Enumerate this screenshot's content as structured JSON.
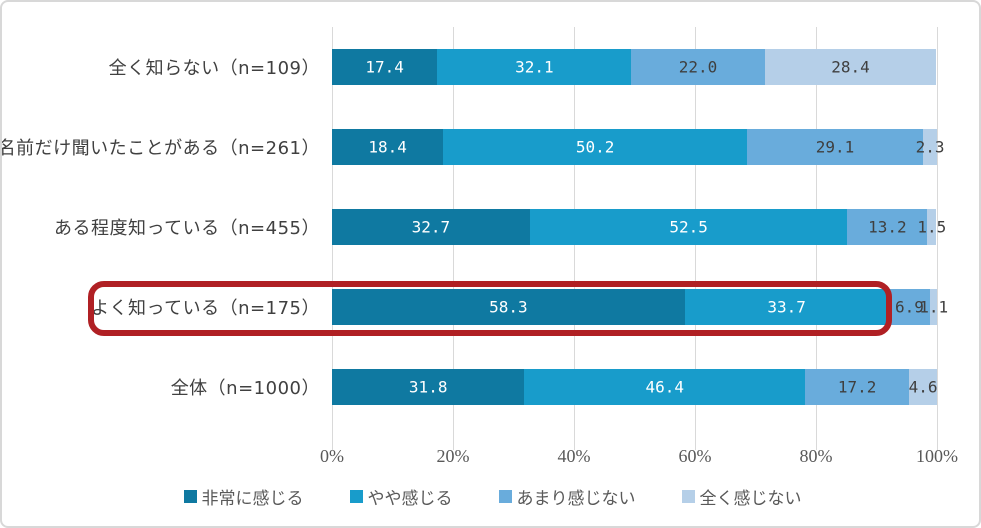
{
  "chart_data": {
    "type": "bar",
    "orientation": "horizontal-stacked",
    "title": "",
    "categories": [
      "全く知らない（n=109）",
      "名前だけ聞いたことがある（n=261）",
      "ある程度知っている（n=455）",
      "よく知っている（n=175）",
      "全体（n=1000）"
    ],
    "series": [
      {
        "name": "非常に感じる",
        "color": "#0f79a1",
        "label_color": "#ffffff",
        "values": [
          17.4,
          18.4,
          32.7,
          58.3,
          31.8
        ],
        "labels": [
          "17.4",
          "18.4",
          "32.7",
          "58.3",
          "31.8"
        ]
      },
      {
        "name": "やや感じる",
        "color": "#189ccb",
        "label_color": "#ffffff",
        "values": [
          32.1,
          50.2,
          52.5,
          33.7,
          46.4
        ],
        "labels": [
          "32.1",
          "50.2",
          "52.5",
          "33.7",
          "46.4"
        ]
      },
      {
        "name": "あまり感じない",
        "color": "#69acdc",
        "label_color": "#3f3f3f",
        "values": [
          22.0,
          29.1,
          13.2,
          6.9,
          17.2
        ],
        "labels": [
          "22.0",
          "29.1",
          "13.2",
          "6.9",
          "17.2"
        ]
      },
      {
        "name": "全く感じない",
        "color": "#b5cfe8",
        "label_color": "#3f3f3f",
        "values": [
          28.4,
          2.3,
          1.5,
          1.1,
          4.6
        ],
        "labels": [
          "28.4",
          "2.3",
          "1.5",
          "1.1",
          "4.6"
        ]
      }
    ],
    "x_axis": {
      "min": 0,
      "max": 100,
      "ticks": [
        "0%",
        "20%",
        "40%",
        "60%",
        "80%",
        "100%"
      ],
      "grid": true
    },
    "legend": {
      "position": "bottom",
      "items": [
        "非常に感じる",
        "やや感じる",
        "あまり感じない",
        "全く感じない"
      ]
    },
    "highlight": {
      "category_index": 3,
      "category_label": "よく知っている（n=175）",
      "box_color": "#b02024"
    }
  }
}
